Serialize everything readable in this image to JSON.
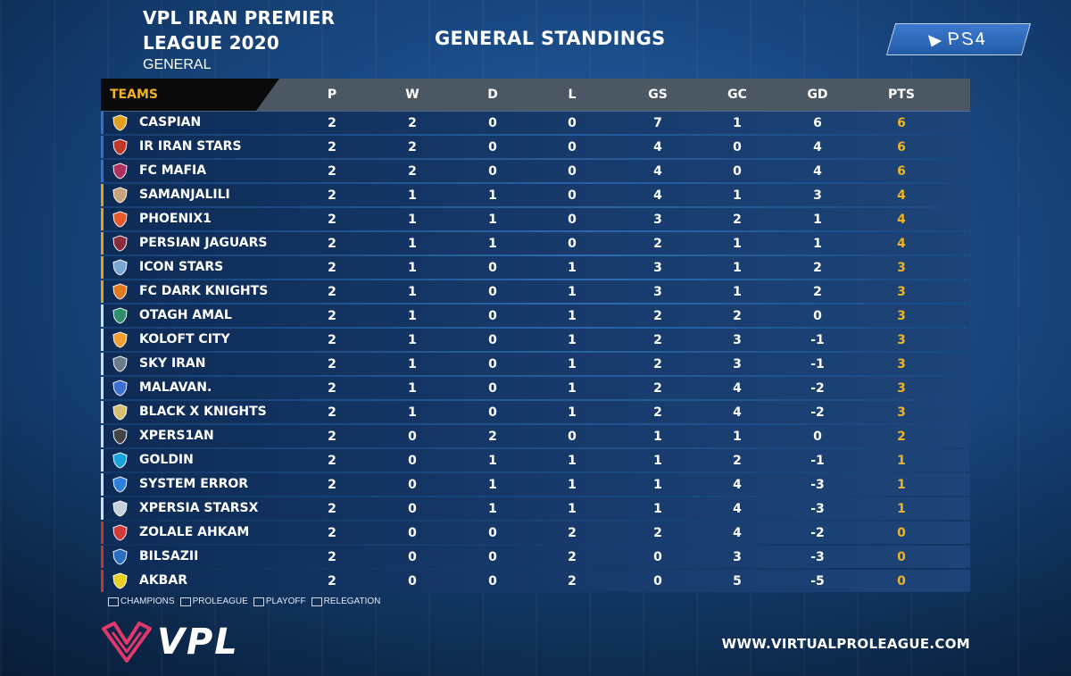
{
  "header": {
    "league_title": "VPL IRAN PREMIER LEAGUE 2020",
    "subtitle": "GENERAL",
    "standings_title": "GENERAL STANDINGS",
    "platform_badge": "PS4"
  },
  "table": {
    "columns": {
      "teams": "TEAMS",
      "p": "P",
      "w": "W",
      "d": "D",
      "l": "L",
      "gs": "GS",
      "gc": "GC",
      "gd": "GD",
      "pts": "PTS"
    },
    "rows": [
      {
        "team": "CASPIAN",
        "p": "2",
        "w": "2",
        "d": "0",
        "l": "0",
        "gs": "7",
        "gc": "1",
        "gd": "6",
        "pts": "6"
      },
      {
        "team": "IR IRAN STARS",
        "p": "2",
        "w": "2",
        "d": "0",
        "l": "0",
        "gs": "4",
        "gc": "0",
        "gd": "4",
        "pts": "6"
      },
      {
        "team": "FC MAFIA",
        "p": "2",
        "w": "2",
        "d": "0",
        "l": "0",
        "gs": "4",
        "gc": "0",
        "gd": "4",
        "pts": "6"
      },
      {
        "team": "SAMANJALILI",
        "p": "2",
        "w": "1",
        "d": "1",
        "l": "0",
        "gs": "4",
        "gc": "1",
        "gd": "3",
        "pts": "4"
      },
      {
        "team": "PHOENIX1",
        "p": "2",
        "w": "1",
        "d": "1",
        "l": "0",
        "gs": "3",
        "gc": "2",
        "gd": "1",
        "pts": "4"
      },
      {
        "team": "PERSIAN JAGUARS",
        "p": "2",
        "w": "1",
        "d": "1",
        "l": "0",
        "gs": "2",
        "gc": "1",
        "gd": "1",
        "pts": "4"
      },
      {
        "team": "ICON STARS",
        "p": "2",
        "w": "1",
        "d": "0",
        "l": "1",
        "gs": "3",
        "gc": "1",
        "gd": "2",
        "pts": "3"
      },
      {
        "team": "FC DARK KNIGHTS",
        "p": "2",
        "w": "1",
        "d": "0",
        "l": "1",
        "gs": "3",
        "gc": "1",
        "gd": "2",
        "pts": "3"
      },
      {
        "team": "OTAGH AMAL",
        "p": "2",
        "w": "1",
        "d": "0",
        "l": "1",
        "gs": "2",
        "gc": "2",
        "gd": "0",
        "pts": "3"
      },
      {
        "team": "KOLOFT CITY",
        "p": "2",
        "w": "1",
        "d": "0",
        "l": "1",
        "gs": "2",
        "gc": "3",
        "gd": "-1",
        "pts": "3"
      },
      {
        "team": "SKY IRAN",
        "p": "2",
        "w": "1",
        "d": "0",
        "l": "1",
        "gs": "2",
        "gc": "3",
        "gd": "-1",
        "pts": "3"
      },
      {
        "team": "MALAVAN.",
        "p": "2",
        "w": "1",
        "d": "0",
        "l": "1",
        "gs": "2",
        "gc": "4",
        "gd": "-2",
        "pts": "3"
      },
      {
        "team": "BLACK X KNIGHTS",
        "p": "2",
        "w": "1",
        "d": "0",
        "l": "1",
        "gs": "2",
        "gc": "4",
        "gd": "-2",
        "pts": "3"
      },
      {
        "team": "XPERS1AN",
        "p": "2",
        "w": "0",
        "d": "2",
        "l": "0",
        "gs": "1",
        "gc": "1",
        "gd": "0",
        "pts": "2"
      },
      {
        "team": "GOLDIN",
        "p": "2",
        "w": "0",
        "d": "1",
        "l": "1",
        "gs": "1",
        "gc": "2",
        "gd": "-1",
        "pts": "1"
      },
      {
        "team": "SYSTEM ERROR",
        "p": "2",
        "w": "0",
        "d": "1",
        "l": "1",
        "gs": "1",
        "gc": "4",
        "gd": "-3",
        "pts": "1"
      },
      {
        "team": "XPERSIA STARSX",
        "p": "2",
        "w": "0",
        "d": "1",
        "l": "1",
        "gs": "1",
        "gc": "4",
        "gd": "-3",
        "pts": "1"
      },
      {
        "team": "ZOLALE AHKAM",
        "p": "2",
        "w": "0",
        "d": "0",
        "l": "2",
        "gs": "2",
        "gc": "4",
        "gd": "-2",
        "pts": "0"
      },
      {
        "team": "BILSAZII",
        "p": "2",
        "w": "0",
        "d": "0",
        "l": "2",
        "gs": "0",
        "gc": "3",
        "gd": "-3",
        "pts": "0"
      },
      {
        "team": "AKBAR",
        "p": "2",
        "w": "0",
        "d": "0",
        "l": "2",
        "gs": "0",
        "gc": "5",
        "gd": "-5",
        "pts": "0"
      }
    ]
  },
  "legend": [
    "CHAMPIONS",
    "PROLEAGUE",
    "PLAYOFF",
    "RELEGATION"
  ],
  "footer": {
    "brand": "VPL",
    "website": "WWW.VIRTUALPROLEAGUE.COM"
  },
  "colors": {
    "accent_gold": "#f0b323",
    "qual_champions": "#2f6fd6",
    "qual_proleague": "#e0a020",
    "qual_playoff": "#d8dde5",
    "qual_relegation": "#c0392b",
    "brand_pink": "#e0386b"
  }
}
